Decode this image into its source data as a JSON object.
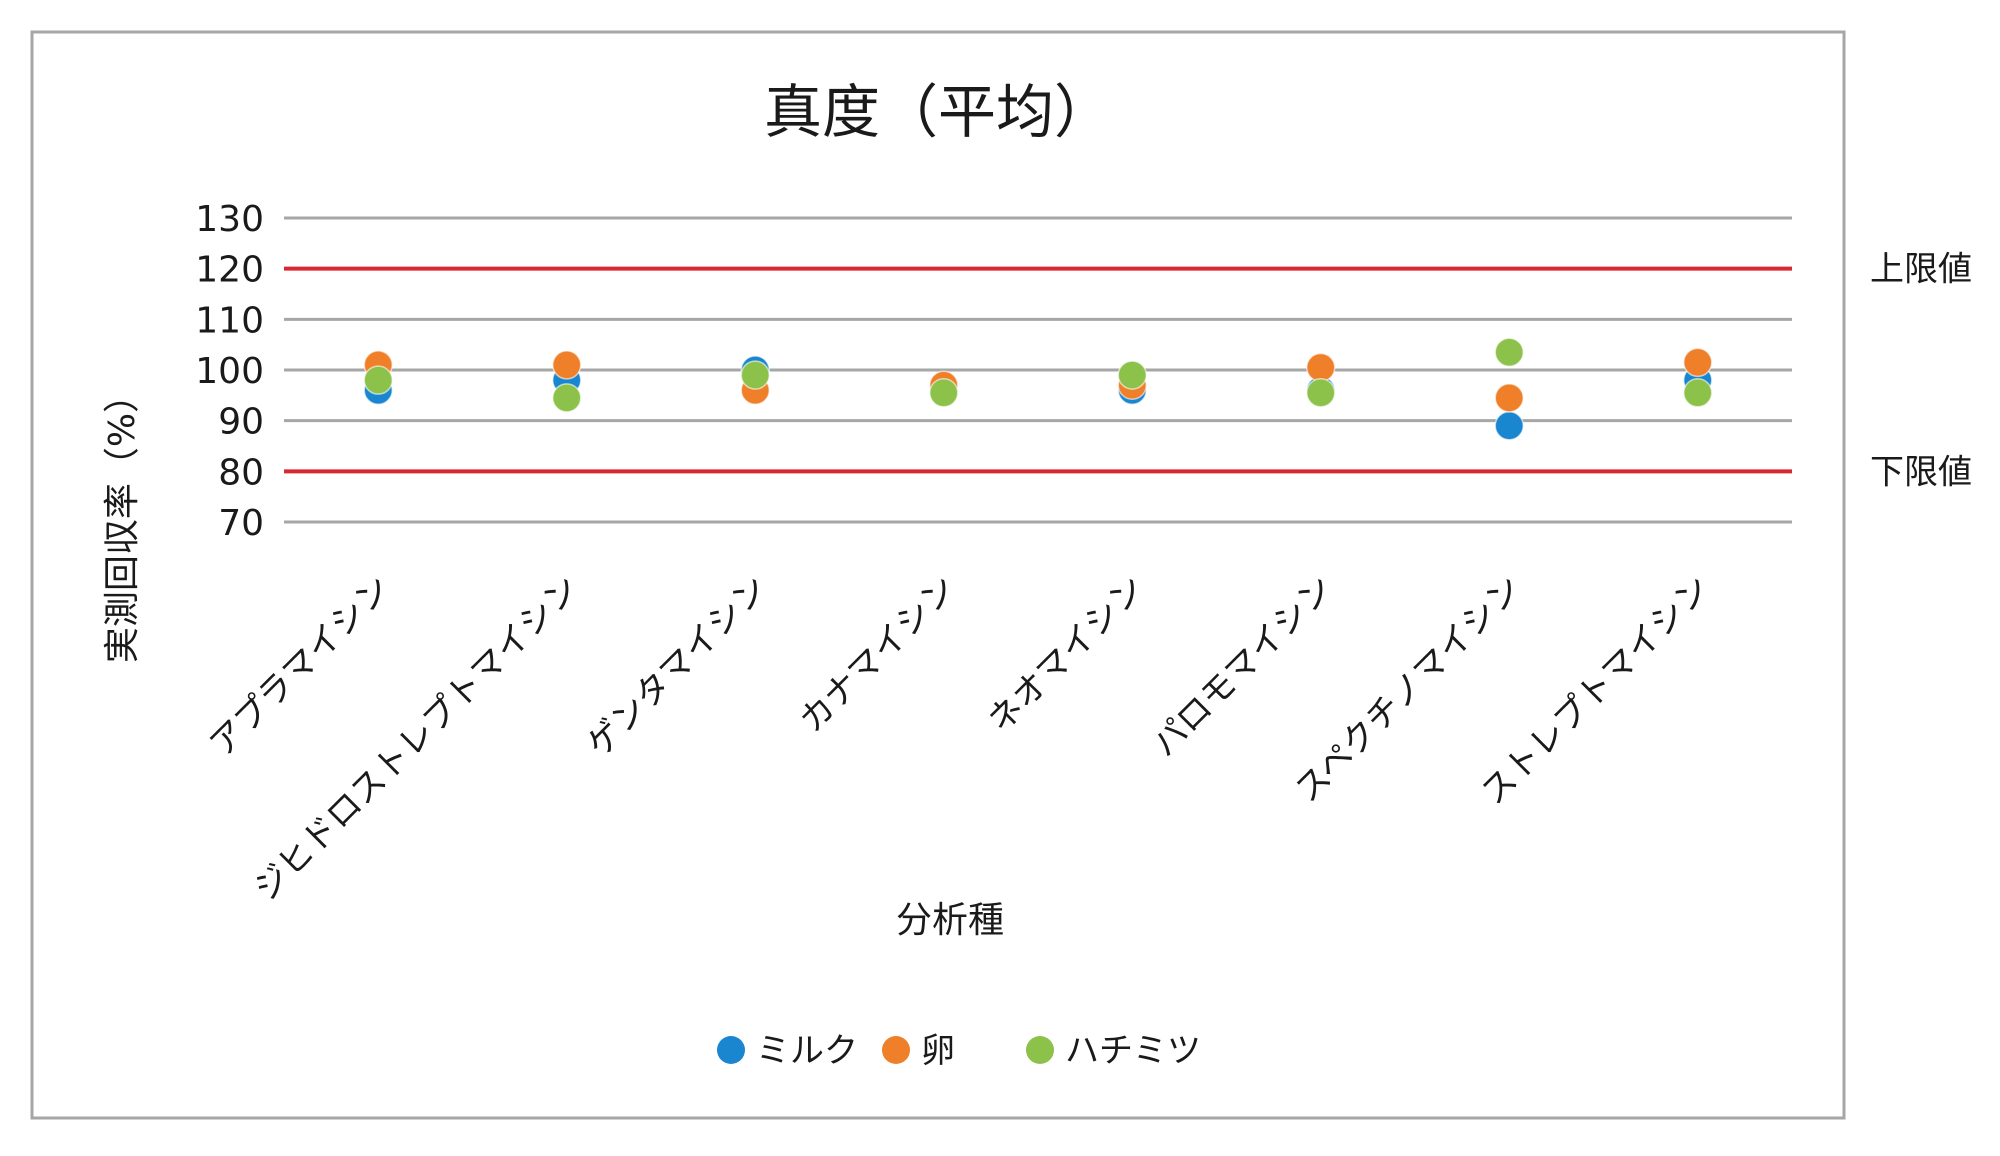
{
  "chart_data": {
    "type": "scatter",
    "title": "真度（平均）",
    "xlabel": "分析種",
    "ylabel": "実測回収率（%）",
    "ylim": [
      70,
      130
    ],
    "yticks": [
      70,
      80,
      90,
      100,
      110,
      120,
      130
    ],
    "grid": true,
    "legend_position": "bottom",
    "categories": [
      "アプラマイシン",
      "ジヒドロストレプトマイシン",
      "ゲンタマイシン",
      "カナマイシン",
      "ネオマイシン",
      "パロモマイシン",
      "スペクチノマイシン",
      "ストレプトマイシン"
    ],
    "series": [
      {
        "name": "ミルク",
        "color": "#1a86d0",
        "values": [
          96,
          98,
          100,
          96,
          96,
          96,
          89,
          98
        ]
      },
      {
        "name": "卵",
        "color": "#f07f2a",
        "values": [
          101,
          101,
          96,
          97,
          97,
          100.5,
          94.5,
          101.5
        ]
      },
      {
        "name": "ハチミツ",
        "color": "#8cc14a",
        "values": [
          98,
          94.5,
          99,
          95.5,
          99,
          95.5,
          103.5,
          95.5
        ]
      }
    ],
    "reference_lines": [
      {
        "label": "上限値",
        "value": 120,
        "color": "#d9282f"
      },
      {
        "label": "下限値",
        "value": 80,
        "color": "#d9282f"
      }
    ]
  }
}
